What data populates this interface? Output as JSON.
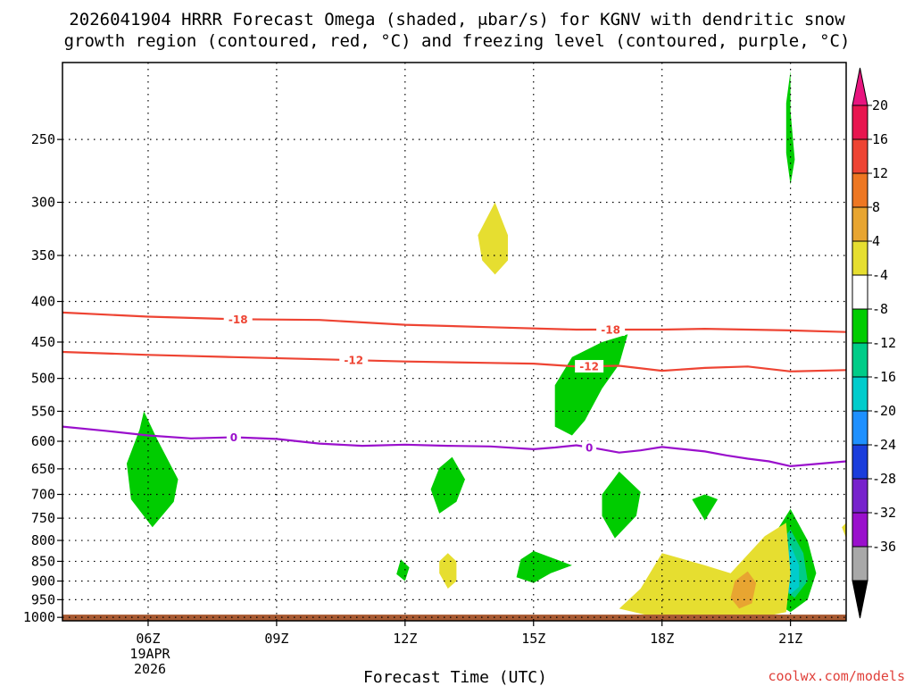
{
  "chart_data": {
    "type": "contour",
    "title_line1": "2026041904 HRRR Forecast Omega (shaded, μbar/s) for KGNV with dendritic snow",
    "title_line2": "growth region (contoured, red, °C) and freezing level (contoured, purple, °C)",
    "xlabel": "Forecast Time (UTC)",
    "credit": "coolwx.com/models",
    "date_label": [
      "19APR",
      "2026"
    ],
    "x_range_hours": [
      4,
      22.3
    ],
    "y_range_hpa": [
      1010,
      200
    ],
    "x_ticks": [
      {
        "hour": 6,
        "label": "06Z"
      },
      {
        "hour": 9,
        "label": "09Z"
      },
      {
        "hour": 12,
        "label": "12Z"
      },
      {
        "hour": 15,
        "label": "15Z"
      },
      {
        "hour": 18,
        "label": "18Z"
      },
      {
        "hour": 21,
        "label": "21Z"
      }
    ],
    "y_ticks": [
      250,
      300,
      350,
      400,
      450,
      500,
      550,
      600,
      650,
      700,
      750,
      800,
      850,
      900,
      950,
      1000
    ],
    "contour_lines": [
      {
        "level": "-18",
        "color": "#ee4433",
        "x": [
          4,
          6,
          8,
          10,
          12,
          14,
          16,
          18,
          19,
          21,
          22.3
        ],
        "p": [
          413,
          418,
          421,
          422,
          428,
          431,
          434,
          434,
          433,
          435,
          437
        ],
        "labels": [
          {
            "hour": 8.1
          },
          {
            "hour": 16.8
          }
        ]
      },
      {
        "level": "-12",
        "color": "#ee4433",
        "x": [
          4,
          6,
          8,
          10,
          12,
          14,
          15,
          16,
          17,
          18,
          19,
          20,
          21,
          22.3
        ],
        "p": [
          463,
          467,
          470,
          473,
          476,
          478,
          479,
          483,
          482,
          489,
          485,
          483,
          490,
          488
        ],
        "labels": [
          {
            "hour": 10.8
          },
          {
            "hour": 16.3
          }
        ]
      },
      {
        "level": "0",
        "color": "#9a10cc",
        "x": [
          4,
          5,
          6,
          7,
          8,
          9,
          10,
          11,
          12,
          13,
          14,
          15,
          15.5,
          16,
          16.5,
          17,
          17.5,
          18,
          18.5,
          19,
          19.5,
          20,
          20.5,
          21,
          22.3
        ],
        "p": [
          575,
          582,
          590,
          595,
          593,
          596,
          604,
          608,
          606,
          608,
          609,
          614,
          611,
          607,
          613,
          620,
          616,
          610,
          614,
          618,
          625,
          631,
          636,
          645,
          636
        ],
        "labels": [
          {
            "hour": 8
          },
          {
            "hour": 16.3
          }
        ]
      }
    ],
    "shaded_regions": [
      {
        "band": "-8 to -4",
        "color": "#00cc00",
        "points": [
          [
            5.9,
            550
          ],
          [
            6.2,
            595
          ],
          [
            6.7,
            670
          ],
          [
            6.6,
            715
          ],
          [
            6.1,
            770
          ],
          [
            5.6,
            710
          ],
          [
            5.5,
            640
          ],
          [
            5.8,
            580
          ]
        ]
      },
      {
        "band": "-8 to -4",
        "color": "#00cc00",
        "points": [
          [
            21,
            230
          ],
          [
            21.1,
            265
          ],
          [
            21,
            285
          ],
          [
            20.9,
            260
          ],
          [
            20.9,
            225
          ],
          [
            21,
            205
          ]
        ]
      },
      {
        "band": "-8 to -4",
        "color": "#00cc00",
        "points": [
          [
            17.2,
            440
          ],
          [
            17.0,
            480
          ],
          [
            16.6,
            515
          ],
          [
            16.2,
            565
          ],
          [
            15.9,
            590
          ],
          [
            15.5,
            575
          ],
          [
            15.5,
            510
          ],
          [
            15.9,
            470
          ],
          [
            16.6,
            450
          ]
        ]
      },
      {
        "band": "-8 to -4",
        "color": "#00cc00",
        "points": [
          [
            13.1,
            628
          ],
          [
            13.4,
            670
          ],
          [
            13.2,
            715
          ],
          [
            12.8,
            740
          ],
          [
            12.6,
            690
          ],
          [
            12.8,
            648
          ]
        ]
      },
      {
        "band": "-8 to -4",
        "color": "#00cc00",
        "points": [
          [
            17.0,
            655
          ],
          [
            17.5,
            695
          ],
          [
            17.4,
            745
          ],
          [
            16.9,
            795
          ],
          [
            16.6,
            745
          ],
          [
            16.6,
            700
          ]
        ]
      },
      {
        "band": "-8 to -4",
        "color": "#00cc00",
        "points": [
          [
            19.0,
            700
          ],
          [
            19.3,
            710
          ],
          [
            19.0,
            755
          ],
          [
            18.7,
            710
          ]
        ]
      },
      {
        "band": "-8 to -4",
        "color": "#00cc00",
        "points": [
          [
            15.0,
            825
          ],
          [
            15.6,
            848
          ],
          [
            15.9,
            860
          ],
          [
            15.4,
            880
          ],
          [
            15.0,
            905
          ],
          [
            14.6,
            890
          ],
          [
            14.7,
            845
          ]
        ]
      },
      {
        "band": "-8 to -4",
        "color": "#00cc00",
        "points": [
          [
            11.9,
            845
          ],
          [
            12.1,
            865
          ],
          [
            12.0,
            900
          ],
          [
            11.8,
            882
          ]
        ]
      },
      {
        "band": "-8 to -4",
        "color": "#00cc00",
        "points": [
          [
            21.0,
            730
          ],
          [
            21.4,
            800
          ],
          [
            21.6,
            880
          ],
          [
            21.4,
            950
          ],
          [
            21.0,
            985
          ],
          [
            20.6,
            955
          ],
          [
            20.4,
            880
          ],
          [
            20.6,
            790
          ]
        ]
      },
      {
        "band": "-12 to -8",
        "color": "#00cc88",
        "points": [
          [
            21.0,
            775
          ],
          [
            21.3,
            830
          ],
          [
            21.4,
            900
          ],
          [
            21.1,
            945
          ],
          [
            20.8,
            920
          ],
          [
            20.7,
            850
          ],
          [
            20.8,
            800
          ]
        ]
      },
      {
        "band": "-16 to -12",
        "color": "#00cccc",
        "points": [
          [
            21.0,
            810
          ],
          [
            21.2,
            860
          ],
          [
            21.2,
            915
          ],
          [
            21.0,
            935
          ],
          [
            20.8,
            900
          ],
          [
            20.9,
            850
          ]
        ]
      },
      {
        "band": "4 to 8",
        "color": "#e6de30",
        "points": [
          [
            14.1,
            300
          ],
          [
            14.4,
            330
          ],
          [
            14.4,
            355
          ],
          [
            14.1,
            370
          ],
          [
            13.8,
            355
          ],
          [
            13.7,
            330
          ]
        ]
      },
      {
        "band": "4 to 8",
        "color": "#e6de30",
        "points": [
          [
            13.0,
            830
          ],
          [
            13.2,
            850
          ],
          [
            13.2,
            900
          ],
          [
            13.0,
            920
          ],
          [
            12.8,
            880
          ],
          [
            12.8,
            850
          ]
        ]
      },
      {
        "band": "4 to 8",
        "color": "#e6de30",
        "points": [
          [
            22.3,
            760
          ],
          [
            22.3,
            795
          ],
          [
            22.2,
            770
          ]
        ]
      },
      {
        "band": "4 to 8",
        "color": "#e6de30",
        "points": [
          [
            17.0,
            975
          ],
          [
            17.5,
            920
          ],
          [
            18.0,
            830
          ],
          [
            19.0,
            860
          ],
          [
            19.6,
            880
          ],
          [
            20.4,
            790
          ],
          [
            20.9,
            760
          ],
          [
            21.0,
            880
          ],
          [
            20.9,
            985
          ],
          [
            20.3,
            1000
          ],
          [
            19.0,
            1000
          ],
          [
            17.8,
            998
          ]
        ]
      },
      {
        "band": "8 to 12",
        "color": "#e8a531",
        "points": [
          [
            20.0,
            875
          ],
          [
            20.2,
            905
          ],
          [
            20.1,
            960
          ],
          [
            19.8,
            975
          ],
          [
            19.6,
            945
          ],
          [
            19.7,
            900
          ]
        ]
      }
    ],
    "ground": {
      "p_top": 992,
      "color": "#a85a32"
    },
    "colorbar": {
      "levels": [
        20,
        16,
        12,
        8,
        4,
        -4,
        -8,
        -12,
        -16,
        -20,
        -24,
        -28,
        -32,
        -36
      ],
      "colors": [
        "#e8154f",
        "#ee4433",
        "#ee7722",
        "#e8a531",
        "#e6de30",
        "#ffffff",
        "#00cc00",
        "#00cc88",
        "#00cccc",
        "#1e90ff",
        "#1a3ddc",
        "#7722cc",
        "#9a10cc",
        "#a8a8a8"
      ],
      "top_color": "#e8157f",
      "bottom_color": "#000000"
    }
  }
}
